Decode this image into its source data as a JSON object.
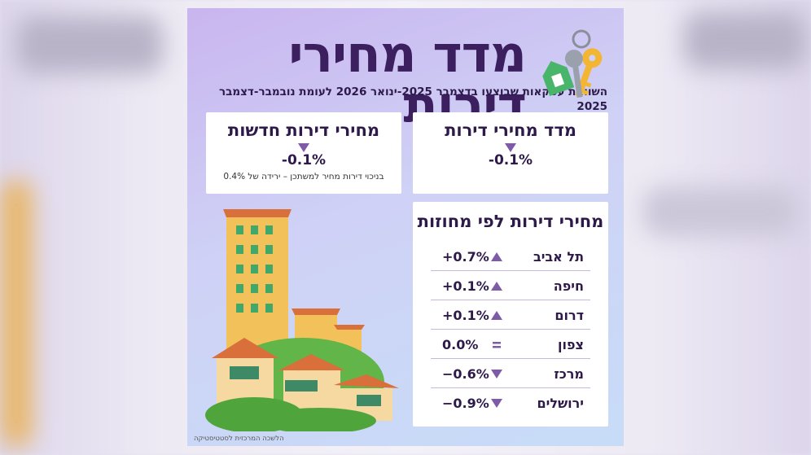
{
  "header": {
    "title": "מדד מחירי דירות",
    "subtitle": "השוואת עסקאות שבוצעו בדצמבר 2025-ינואר 2026 לעומת נובמבר-דצמבר 2025"
  },
  "summary": [
    {
      "title": "מדד מחירי דירות",
      "change": "-0.1%"
    },
    {
      "title": "מחירי דירות חדשות",
      "change": "-0.1%",
      "note": "בניכוי דירות מחיר למשתכן – ירידה של 0.4%"
    }
  ],
  "districts": {
    "title": "מחירי דירות לפי מחוזות",
    "rows": [
      [
        "תל אביב",
        "+0.7%"
      ],
      [
        "חיפה",
        "+0.1%"
      ],
      [
        "דרום",
        "+0.1%"
      ],
      [
        "צפון",
        "0.0%"
      ],
      [
        "מרכז",
        "−0.6%"
      ],
      [
        "ירושלים",
        "−0.9%"
      ]
    ]
  },
  "footer": {
    "source": "הלשכה המרכזית לסטטיסטיקה"
  }
}
